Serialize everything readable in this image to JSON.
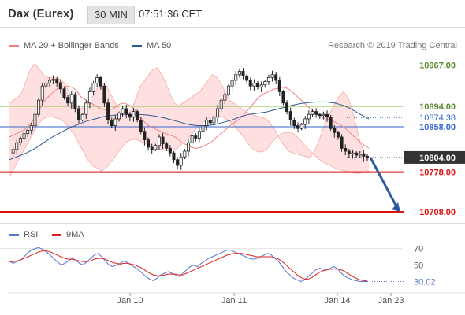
{
  "header": {
    "title": "Dax (Eurex)",
    "timeframe": "30 MIN",
    "time": "07:51:36 CET"
  },
  "legend": {
    "items": [
      {
        "label": "MA 20 + Bollinger Bands",
        "color": "#f08080"
      },
      {
        "label": "MA 50",
        "color": "#2c5a8e"
      }
    ],
    "copyright": "Research © 2019 Trading Central"
  },
  "rsi_legend": {
    "items": [
      {
        "label": "RSI",
        "color": "#5577cc"
      },
      {
        "label": "9MA",
        "color": "#e02020"
      }
    ]
  },
  "colors": {
    "resistance": "#99cc66",
    "pivot": "#3366cc",
    "support": "#dd1111",
    "last": "#333333",
    "band": "#ffd6d6",
    "ma20": "#f08080",
    "ma50": "#2c5a8e",
    "arrow": "#2c5a9e"
  },
  "chart_data": [
    {
      "type": "candlestick",
      "title": "Dax (Eurex)",
      "timeframe": "30 MIN",
      "ylim": [
        10690,
        10990
      ],
      "x_tick_labels": [
        "Jan 10",
        "Jan 11",
        "Jan 14",
        "Jan 23"
      ],
      "levels": [
        {
          "value": 10967.0,
          "label": "10967.00",
          "kind": "resistance"
        },
        {
          "value": 10894.0,
          "label": "10894.00",
          "kind": "resistance"
        },
        {
          "value": 10874.38,
          "label": "10874.38",
          "kind": "pivot-dotted"
        },
        {
          "value": 10858.0,
          "label": "10858.00",
          "kind": "pivot"
        },
        {
          "value": 10804.0,
          "label": "10804.00",
          "kind": "last"
        },
        {
          "value": 10778.0,
          "label": "10778.00",
          "kind": "support"
        },
        {
          "value": 10708.0,
          "label": "10708.00",
          "kind": "support"
        }
      ],
      "close": [
        10812,
        10818,
        10830,
        10838,
        10846,
        10852,
        10860,
        10880,
        10905,
        10930,
        10935,
        10940,
        10942,
        10936,
        10925,
        10910,
        10900,
        10915,
        10890,
        10870,
        10880,
        10900,
        10920,
        10935,
        10945,
        10930,
        10900,
        10870,
        10860,
        10872,
        10882,
        10890,
        10880,
        10875,
        10885,
        10870,
        10850,
        10835,
        10822,
        10818,
        10825,
        10840,
        10828,
        10820,
        10812,
        10800,
        10790,
        10805,
        10815,
        10830,
        10842,
        10838,
        10850,
        10860,
        10870,
        10865,
        10875,
        10890,
        10905,
        10915,
        10930,
        10940,
        10950,
        10956,
        10948,
        10940,
        10930,
        10935,
        10928,
        10932,
        10938,
        10945,
        10950,
        10940,
        10920,
        10900,
        10885,
        10870,
        10860,
        10855,
        10862,
        10872,
        10880,
        10885,
        10880,
        10878,
        10880,
        10875,
        10855,
        10848,
        10840,
        10820,
        10815,
        10810,
        10812,
        10808,
        10810,
        10806,
        10804
      ],
      "ma20": [
        10840,
        10844,
        10848,
        10852,
        10860,
        10870,
        10885,
        10900,
        10910,
        10918,
        10925,
        10928,
        10930,
        10928,
        10922,
        10910,
        10905,
        10900,
        10895,
        10890,
        10888,
        10888,
        10892,
        10898,
        10900,
        10896,
        10890,
        10878,
        10868,
        10860,
        10856,
        10852,
        10848,
        10845,
        10842,
        10838,
        10830,
        10826,
        10822,
        10820,
        10822,
        10826,
        10830,
        10838,
        10845,
        10852,
        10860,
        10866,
        10872,
        10880,
        10890,
        10900,
        10910,
        10916,
        10920,
        10924,
        10926,
        10928,
        10926,
        10920,
        10912,
        10904,
        10896,
        10888,
        10880,
        10876,
        10872,
        10870,
        10866,
        10862,
        10856,
        10848,
        10840,
        10832,
        10826,
        10820
      ],
      "ma50": [
        10800,
        10806,
        10812,
        10820,
        10830,
        10840,
        10848,
        10856,
        10862,
        10868,
        10872,
        10876,
        10878,
        10880,
        10880,
        10880,
        10879,
        10877,
        10874,
        10870,
        10866,
        10862,
        10860,
        10860,
        10862,
        10866,
        10870,
        10876,
        10880,
        10882,
        10884,
        10888,
        10892,
        10896,
        10899,
        10901,
        10902,
        10902,
        10900,
        10896,
        10889,
        10880,
        10872
      ],
      "bollinger_upper": [
        10900,
        10905,
        10910,
        10920,
        10940,
        10960,
        10970,
        10960,
        10950,
        10945,
        10945,
        10944,
        10942,
        10935,
        10920,
        10905,
        10895,
        10890,
        10895,
        10905,
        10915,
        10930,
        10935,
        10930,
        10915,
        10900,
        10890,
        10885,
        10880,
        10890,
        10910,
        10930,
        10940,
        10950,
        10960,
        10962,
        10950,
        10935,
        10915,
        10900,
        10895,
        10900,
        10905,
        10910,
        10915,
        10920,
        10930,
        10940,
        10950,
        10945,
        10935,
        10920,
        10905,
        10900,
        10895,
        10890,
        10885,
        10880,
        10878,
        10876,
        10874,
        10870,
        10860,
        10850,
        10835,
        10825,
        10815,
        10812,
        10810,
        10808,
        10806,
        10804,
        10812,
        10830,
        10850,
        10870,
        10885,
        10900,
        10912,
        10920,
        10910,
        10890,
        10860,
        10830,
        10810,
        10800
      ],
      "bollinger_lower": [
        10770,
        10785,
        10800,
        10815,
        10830,
        10845,
        10860,
        10870,
        10875,
        10876,
        10874,
        10872,
        10866,
        10856,
        10845,
        10830,
        10815,
        10800,
        10790,
        10785,
        10780,
        10786,
        10796,
        10806,
        10818,
        10828,
        10834,
        10836,
        10834,
        10830,
        10826,
        10822,
        10820,
        10818,
        10816,
        10815,
        10818,
        10824,
        10832,
        10840,
        10850,
        10858,
        10866,
        10872,
        10876,
        10878,
        10876,
        10872,
        10866,
        10858,
        10848,
        10838,
        10826,
        10818,
        10814,
        10814,
        10820,
        10830,
        10840,
        10846,
        10848,
        10848,
        10844,
        10836,
        10826,
        10818,
        10810,
        10802,
        10796,
        10792,
        10788,
        10784,
        10782,
        10780,
        10778,
        10776,
        10776,
        10778,
        10780
      ],
      "forecast_arrow": {
        "from_value": 10804,
        "to_value": 10708
      }
    },
    {
      "type": "line",
      "title": "RSI",
      "ylim": [
        20,
        80
      ],
      "y_ticks": [
        70,
        50
      ],
      "last_value_label": "30.02",
      "series": [
        {
          "name": "RSI",
          "values": [
            55,
            52,
            54,
            56,
            60,
            65,
            68,
            70,
            71,
            69,
            66,
            62,
            58,
            54,
            50,
            52,
            55,
            58,
            56,
            52,
            50,
            54,
            58,
            62,
            64,
            60,
            55,
            50,
            48,
            50,
            52,
            55,
            53,
            50,
            47,
            44,
            40,
            36,
            33,
            31,
            34,
            38,
            40,
            42,
            40,
            38,
            36,
            40,
            44,
            48,
            50,
            48,
            52,
            55,
            58,
            60,
            62,
            64,
            66,
            68,
            68,
            66,
            64,
            62,
            60,
            58,
            57,
            58,
            60,
            62,
            64,
            62,
            58,
            54,
            48,
            42,
            38,
            34,
            32,
            30,
            32,
            36,
            40,
            44,
            46,
            45,
            44,
            46,
            48,
            45,
            40,
            36,
            34,
            32,
            31,
            30,
            30,
            30.02
          ]
        },
        {
          "name": "9MA",
          "values": [
            54,
            54,
            55,
            56,
            58,
            60,
            62,
            64,
            66,
            67,
            67,
            66,
            64,
            62,
            60,
            58,
            57,
            57,
            56,
            55,
            54,
            54,
            55,
            57,
            58,
            58,
            57,
            55,
            53,
            52,
            51,
            52,
            52,
            51,
            50,
            48,
            46,
            43,
            40,
            38,
            37,
            37,
            38,
            39,
            39,
            39,
            38,
            38,
            40,
            42,
            44,
            46,
            48,
            50,
            52,
            54,
            56,
            58,
            60,
            62,
            63,
            64,
            64,
            64,
            63,
            62,
            61,
            60,
            60,
            60,
            60,
            60,
            59,
            57,
            54,
            50,
            46,
            42,
            38,
            35,
            33,
            33,
            35,
            38,
            41,
            43,
            44,
            45,
            45,
            45,
            44,
            42,
            39,
            36,
            34,
            32,
            31,
            31
          ]
        }
      ]
    }
  ]
}
